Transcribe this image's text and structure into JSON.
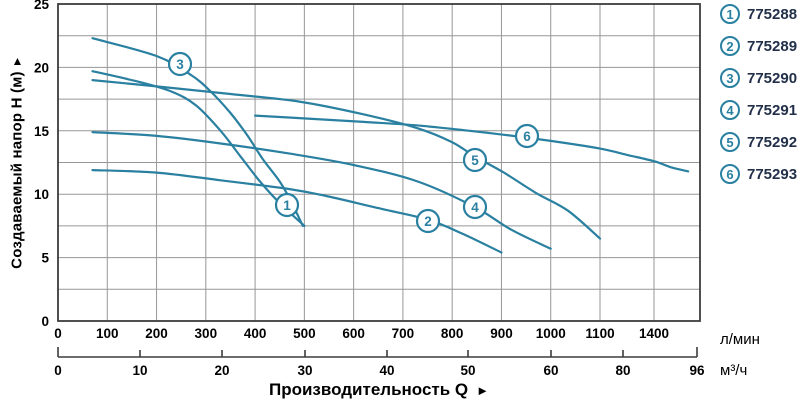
{
  "chart_data": {
    "type": "line",
    "title": "",
    "ylabel": "Создаваемый напор Н (м)",
    "ylabel_arrow": "▲",
    "xlabel": "Производительность Q",
    "xlabel_arrow": "►",
    "y_axis": {
      "ticks": [
        0,
        5,
        10,
        15,
        20,
        25
      ],
      "minor_step": 2.5,
      "range": [
        0,
        25
      ],
      "grid": true
    },
    "x_axis_primary": {
      "unit": "л/мин",
      "ticks": [
        0,
        100,
        200,
        300,
        400,
        500,
        600,
        700,
        800,
        900,
        1000,
        1100,
        1400
      ],
      "grid": true
    },
    "x_axis_secondary": {
      "unit": "м³/ч",
      "ticks": [
        0,
        10,
        20,
        30,
        40,
        50,
        60,
        80,
        96
      ]
    },
    "legend_position": "right",
    "series": [
      {
        "id": "1",
        "model": "775288",
        "points": [
          [
            70,
            19.7
          ],
          [
            160,
            18.9
          ],
          [
            230,
            18.1
          ],
          [
            280,
            17.0
          ],
          [
            330,
            15.0
          ],
          [
            370,
            13.0
          ],
          [
            410,
            11.0
          ],
          [
            450,
            9.3
          ],
          [
            500,
            7.5
          ]
        ]
      },
      {
        "id": "2",
        "model": "775289",
        "points": [
          [
            70,
            11.9
          ],
          [
            200,
            11.7
          ],
          [
            330,
            11.1
          ],
          [
            470,
            10.4
          ],
          [
            540,
            9.9
          ],
          [
            650,
            8.9
          ],
          [
            750,
            8.0
          ],
          [
            820,
            6.9
          ],
          [
            900,
            5.4
          ]
        ]
      },
      {
        "id": "3",
        "model": "775290",
        "points": [
          [
            70,
            22.3
          ],
          [
            200,
            20.9
          ],
          [
            270,
            19.4
          ],
          [
            310,
            18.1
          ],
          [
            350,
            16.4
          ],
          [
            385,
            14.6
          ],
          [
            415,
            12.8
          ],
          [
            450,
            11.0
          ],
          [
            472,
            9.5
          ],
          [
            497,
            7.5
          ]
        ]
      },
      {
        "id": "4",
        "model": "775291",
        "points": [
          [
            70,
            14.9
          ],
          [
            200,
            14.6
          ],
          [
            330,
            14.0
          ],
          [
            470,
            13.2
          ],
          [
            600,
            12.3
          ],
          [
            730,
            11.0
          ],
          [
            845,
            9.0
          ],
          [
            920,
            7.2
          ],
          [
            1000,
            5.7
          ]
        ]
      },
      {
        "id": "5",
        "model": "775292",
        "points": [
          [
            70,
            19.0
          ],
          [
            200,
            18.5
          ],
          [
            350,
            17.9
          ],
          [
            490,
            17.3
          ],
          [
            620,
            16.3
          ],
          [
            730,
            15.2
          ],
          [
            800,
            14.1
          ],
          [
            845,
            13.0
          ],
          [
            905,
            11.7
          ],
          [
            970,
            10.1
          ],
          [
            1035,
            8.7
          ],
          [
            1100,
            6.5
          ]
        ]
      },
      {
        "id": "6",
        "model": "775293",
        "points": [
          [
            400,
            16.2
          ],
          [
            490,
            16.0
          ],
          [
            620,
            15.7
          ],
          [
            735,
            15.4
          ],
          [
            880,
            14.8
          ],
          [
            1000,
            14.2
          ],
          [
            1100,
            13.6
          ],
          [
            1250,
            13.1
          ],
          [
            1400,
            12.6
          ],
          [
            1500,
            12.1
          ],
          [
            1590,
            11.8
          ]
        ]
      }
    ]
  },
  "colors": {
    "curve": "#2a80a0",
    "grid": "#979797",
    "frame": "#3c3c3c",
    "axis_text": "#000000",
    "legend_text": "#22304a"
  }
}
